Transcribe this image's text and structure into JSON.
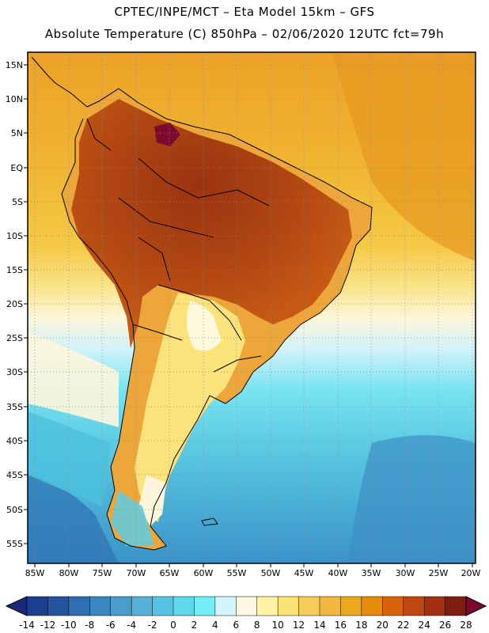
{
  "title": {
    "line1": "CPTEC/INPE/MCT –  Eta Model 15km – GFS",
    "line2": "Absolute Temperature (C) 850hPa – 02/06/2020 12UTC fct=79h"
  },
  "map": {
    "lon_labels": [
      "85W",
      "80W",
      "75W",
      "70W",
      "65W",
      "60W",
      "55W",
      "50W",
      "45W",
      "40W",
      "35W",
      "30W",
      "25W",
      "20W"
    ],
    "lat_labels": [
      "15N",
      "10N",
      "5N",
      "EQ",
      "5S",
      "10S",
      "15S",
      "20S",
      "25S",
      "30S",
      "35S",
      "40S",
      "45S",
      "50S",
      "55S"
    ]
  },
  "colorbar": {
    "labels": [
      "-14",
      "-12",
      "-10",
      "-8",
      "-6",
      "-4",
      "-2",
      "0",
      "2",
      "4",
      "6",
      "8",
      "10",
      "12",
      "14",
      "16",
      "18",
      "20",
      "22",
      "24",
      "26",
      "28"
    ],
    "colors": [
      "#1c3f8f",
      "#2456a0",
      "#2d6fb0",
      "#3a86bf",
      "#4a9cca",
      "#58b1d6",
      "#56c4e0",
      "#5ed8ea",
      "#74eef6",
      "#d2f5fb",
      "#fdf8e3",
      "#fdf3a3",
      "#fbe275",
      "#f5cc5a",
      "#f1b73f",
      "#ecaa1e",
      "#e68b0b",
      "#d9620c",
      "#bf4711",
      "#a2320f",
      "#7f1d11"
    ],
    "under_color": "#1b2a78",
    "over_color": "#7a0b2e"
  }
}
